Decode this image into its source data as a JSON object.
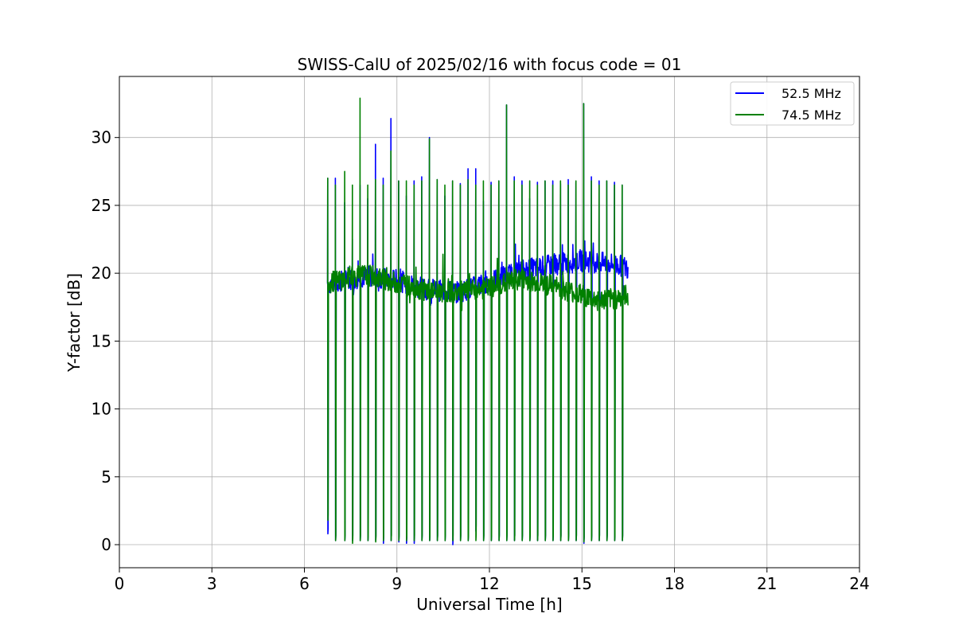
{
  "chart_data": {
    "type": "line",
    "title": "SWISS-CalU of 2025/02/16 with focus code = 01",
    "xlabel": "Universal Time [h]",
    "ylabel": "Y-factor [dB]",
    "xlim": [
      0,
      24
    ],
    "ylim": [
      -1.7,
      34.5
    ],
    "xticks": [
      "0",
      "3",
      "6",
      "9",
      "12",
      "15",
      "18",
      "21",
      "24"
    ],
    "yticks": [
      "0",
      "5",
      "10",
      "15",
      "20",
      "25",
      "30"
    ],
    "grid": true,
    "legend_position": "top-right",
    "series": [
      {
        "name": "52.5 MHz",
        "color": "#0000ff",
        "baseline": [
          [
            6.75,
            19.2
          ],
          [
            8.0,
            19.8
          ],
          [
            9.0,
            19.5
          ],
          [
            10.0,
            18.8
          ],
          [
            11.0,
            18.6
          ],
          [
            12.0,
            19.4
          ],
          [
            13.0,
            20.2
          ],
          [
            14.0,
            20.6
          ],
          [
            15.0,
            20.9
          ],
          [
            16.0,
            20.7
          ],
          [
            16.5,
            20.4
          ]
        ],
        "pulse_times": [
          6.75,
          7.0,
          7.3,
          7.55,
          7.8,
          8.05,
          8.3,
          8.55,
          8.8,
          9.05,
          9.3,
          9.55,
          9.8,
          10.05,
          10.3,
          10.55,
          10.8,
          11.05,
          11.3,
          11.55,
          11.8,
          12.05,
          12.3,
          12.55,
          12.8,
          13.05,
          13.3,
          13.55,
          13.8,
          14.05,
          14.3,
          14.55,
          14.8,
          15.05,
          15.3,
          15.55,
          15.8,
          16.05,
          16.3
        ],
        "pulse_peaks": [
          27.0,
          27.0,
          25.2,
          22.5,
          26.5,
          25.5,
          29.5,
          27.0,
          31.4,
          26.8,
          25.7,
          26.8,
          27.1,
          30.0,
          26.9,
          25.7,
          26.8,
          26.6,
          27.7,
          27.7,
          25.3,
          26.7,
          26.8,
          32.4,
          27.1,
          26.8,
          25.5,
          26.7,
          26.8,
          26.8,
          26.6,
          26.9,
          26.7,
          32.5,
          27.1,
          26.8,
          26.8,
          26.7,
          26.5
        ],
        "pulse_minima": [
          0.8,
          0.3,
          0.3,
          0.3,
          0.3,
          0.3,
          0.3,
          0.1,
          0.3,
          0.2,
          0.1,
          0.1,
          0.3,
          0.3,
          0.3,
          0.3,
          0.0,
          0.3,
          0.3,
          1.0,
          0.3,
          0.3,
          0.3,
          0.3,
          0.3,
          0.3,
          0.3,
          0.3,
          0.3,
          0.3,
          0.3,
          0.3,
          0.3,
          0.1,
          0.3,
          0.3,
          0.3,
          0.3,
          0.3
        ]
      },
      {
        "name": "74.5 MHz",
        "color": "#008000",
        "baseline": [
          [
            6.75,
            19.3
          ],
          [
            8.0,
            19.9
          ],
          [
            9.0,
            19.3
          ],
          [
            10.0,
            18.7
          ],
          [
            11.0,
            18.6
          ],
          [
            12.0,
            18.9
          ],
          [
            13.0,
            19.6
          ],
          [
            14.0,
            19.1
          ],
          [
            15.0,
            18.4
          ],
          [
            15.5,
            18.0
          ],
          [
            16.0,
            18.1
          ],
          [
            16.5,
            18.4
          ]
        ],
        "pulse_times": [
          6.75,
          7.0,
          7.3,
          7.55,
          7.8,
          8.05,
          8.3,
          8.55,
          8.8,
          9.05,
          9.3,
          9.55,
          9.8,
          10.05,
          10.3,
          10.55,
          10.8,
          11.05,
          11.3,
          11.55,
          11.8,
          12.05,
          12.3,
          12.55,
          12.8,
          13.05,
          13.3,
          13.55,
          13.8,
          14.05,
          14.3,
          14.55,
          14.8,
          15.05,
          15.3,
          15.55,
          15.8,
          16.05,
          16.3
        ],
        "pulse_peaks": [
          27.0,
          26.5,
          27.5,
          26.5,
          32.9,
          26.5,
          26.9,
          26.5,
          29.0,
          26.8,
          26.8,
          26.5,
          26.8,
          29.9,
          26.9,
          26.5,
          26.8,
          26.5,
          26.9,
          26.5,
          26.8,
          26.5,
          26.8,
          32.4,
          26.8,
          26.5,
          26.8,
          26.5,
          26.8,
          26.5,
          26.8,
          26.5,
          26.8,
          32.5,
          26.8,
          26.5,
          26.8,
          26.5,
          26.5
        ],
        "pulse_minima": [
          1.8,
          0.3,
          0.3,
          0.1,
          0.3,
          0.3,
          0.2,
          0.3,
          0.3,
          0.3,
          0.3,
          0.3,
          0.3,
          0.3,
          0.3,
          0.3,
          0.3,
          0.3,
          0.3,
          0.3,
          0.3,
          0.3,
          0.3,
          0.3,
          0.3,
          0.3,
          0.3,
          0.3,
          0.3,
          0.3,
          0.3,
          0.3,
          0.3,
          0.2,
          0.3,
          0.3,
          0.3,
          0.3,
          0.3
        ]
      }
    ]
  }
}
